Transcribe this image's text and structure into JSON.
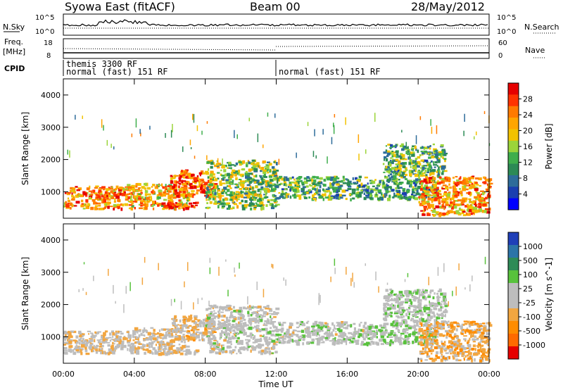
{
  "header": {
    "station": "Syowa East (fitACF)",
    "beam": "Beam 00",
    "date": "28/May/2012"
  },
  "sky_panel": {
    "left_label": "N.Sky",
    "right_label": "N.Search",
    "left_ticks": [
      "10^5",
      "10^0"
    ],
    "right_ticks": [
      "10^5",
      "10^0"
    ]
  },
  "freq_panel": {
    "left_label_1": "Freq.",
    "left_label_2": "[MHz]",
    "right_label": "Nave",
    "left_ticks": [
      "18",
      "8"
    ],
    "right_ticks": [
      "60",
      "0"
    ]
  },
  "cpid": {
    "label": "CPID",
    "segments": [
      {
        "line1": "themis 3300 RF",
        "line2": "normal (fast) 151 RF"
      },
      {
        "line1": "",
        "line2": "normal (fast) 151 RF"
      }
    ]
  },
  "axes": {
    "ylabel": "Slant Range [km]",
    "xlabel": "Time UT",
    "y_ticks": [
      "4000",
      "3000",
      "2000",
      "1000"
    ],
    "x_ticks": [
      "00:00",
      "04:00",
      "08:00",
      "12:00",
      "16:00",
      "20:00",
      "00:00"
    ]
  },
  "power_colorbar": {
    "title": "Power [dB]",
    "ticks": [
      "28",
      "24",
      "20",
      "16",
      "12",
      "8",
      "4"
    ],
    "colors": [
      "#e60000",
      "#ff3300",
      "#ff7a00",
      "#ffa500",
      "#f2c200",
      "#9bd43a",
      "#3fae4c",
      "#2c8a55",
      "#2d6c9a",
      "#1a3fb0",
      "#0000ff"
    ]
  },
  "velocity_colorbar": {
    "title": "Velocity [m s^-1]",
    "ticks": [
      "1000",
      "500",
      "100",
      "25",
      "-25",
      "-100",
      "-500",
      "-1000"
    ],
    "colors": [
      "#1f3fb8",
      "#2c74a8",
      "#2e8b57",
      "#58c23c",
      "#bdbdbd",
      "#bdbdbd",
      "#f2a640",
      "#ff8c00",
      "#ff6a00",
      "#e60000"
    ]
  },
  "chart_data": {
    "type": "heatmap",
    "title": "Syowa East (fitACF) Beam 00 28/May/2012",
    "xlabel": "Time UT",
    "ylabel": "Slant Range [km]",
    "xlim_hours": [
      0,
      24
    ],
    "ylim_km": [
      180,
      4500
    ],
    "panels": [
      "Power [dB]",
      "Velocity [m s^-1]"
    ],
    "power_range_db": [
      0,
      30
    ],
    "velocity_range_ms": [
      -1000,
      1000
    ],
    "cpid_change_time": "12:00",
    "echo_regions": [
      {
        "time_start": 0.0,
        "time_end": 3.5,
        "range_start": 500,
        "range_end": 1200,
        "power_db": 22,
        "velocity": -150
      },
      {
        "time_start": 3.5,
        "time_end": 7.0,
        "range_start": 500,
        "range_end": 1300,
        "power_db": 20,
        "velocity": -100
      },
      {
        "time_start": 5.5,
        "time_end": 7.5,
        "range_start": 500,
        "range_end": 700,
        "power_db": 28,
        "velocity": -80
      },
      {
        "time_start": 6.0,
        "time_end": 8.5,
        "range_start": 900,
        "range_end": 1700,
        "power_db": 24,
        "velocity": -200
      },
      {
        "time_start": 8.0,
        "time_end": 12.0,
        "range_start": 500,
        "range_end": 2000,
        "power_db": 14,
        "velocity": 0
      },
      {
        "time_start": 12.0,
        "time_end": 17.0,
        "range_start": 800,
        "range_end": 1500,
        "power_db": 12,
        "velocity": 30
      },
      {
        "time_start": 17.0,
        "time_end": 21.0,
        "range_start": 800,
        "range_end": 1400,
        "power_db": 10,
        "velocity": 150
      },
      {
        "time_start": 18.0,
        "time_end": 21.5,
        "range_start": 1400,
        "range_end": 2500,
        "power_db": 12,
        "velocity": 60
      },
      {
        "time_start": 20.0,
        "time_end": 24.0,
        "range_start": 300,
        "range_end": 1500,
        "power_db": 22,
        "velocity": -300
      }
    ]
  }
}
